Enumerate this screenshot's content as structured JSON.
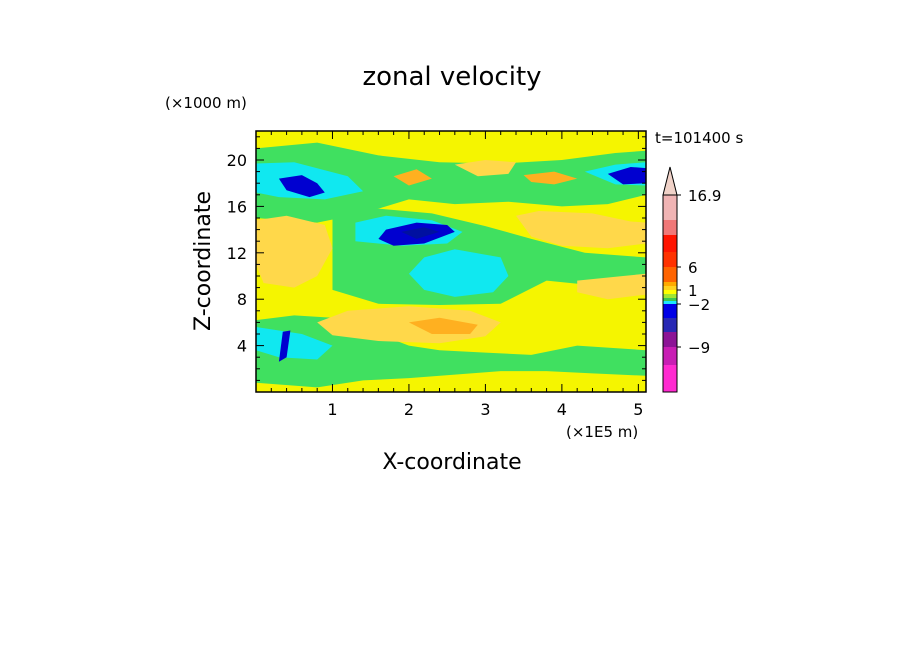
{
  "chart_data": {
    "type": "heatmap",
    "title": "zonal velocity",
    "xlabel": "X-coordinate",
    "ylabel": "Z-coordinate",
    "x_unit": "(×1E5 m)",
    "y_unit": "(×1000 m)",
    "time_label": "t=101400 s",
    "xlim": [
      0,
      5.1
    ],
    "ylim": [
      0,
      22.5
    ],
    "x_ticks": [
      1,
      2,
      3,
      4,
      5
    ],
    "y_ticks": [
      4,
      8,
      12,
      16,
      20
    ],
    "colorbar": {
      "colors": [
        "#ff2ad0",
        "#c81eb4",
        "#8c1496",
        "#2828b4",
        "#0000e6",
        "#1ee6ff",
        "#3cc850",
        "#a0e632",
        "#ffff00",
        "#ffd21e",
        "#ffaa00",
        "#ff6400",
        "#ff3200",
        "#ff1400",
        "#f07878",
        "#f0b4b4"
      ],
      "extend_color": "#f0d2c8",
      "tick_labels": [
        {
          "label": "16.9",
          "value": 16.9
        },
        {
          "label": "6",
          "value": 6
        },
        {
          "label": "1",
          "value": 1
        },
        {
          "label": "−2",
          "value": -2
        },
        {
          "label": "−9",
          "value": -9
        }
      ]
    },
    "field_palette": {
      "yellow": "#f5f500",
      "light_orange": "#ffd84a",
      "orange": "#ffb020",
      "green": "#40e060",
      "cyan": "#10e8f0",
      "blue": "#0000d0",
      "navy": "#0010a0"
    }
  }
}
